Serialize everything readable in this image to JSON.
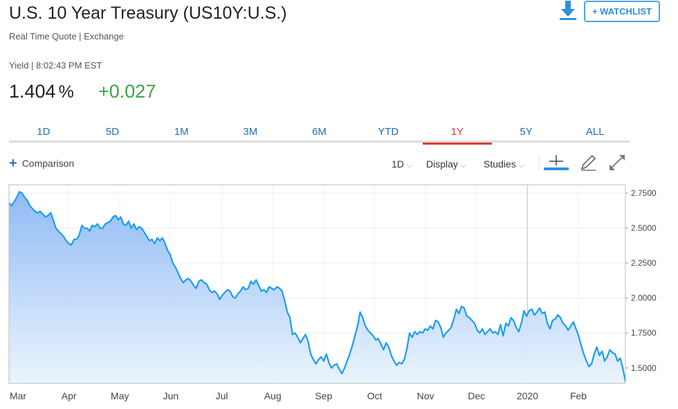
{
  "header": {
    "title": "U.S. 10 Year Treasury (US10Y:U.S.)",
    "subtitle": "Real Time Quote | Exchange",
    "yield_label": "Yield | 8:02:43 PM EST",
    "price": "1.404",
    "price_unit": "%",
    "change": "+0.027",
    "watchlist_label": "+ WATCHLIST",
    "download_icon": "download-icon"
  },
  "colors": {
    "accent_blue": "#2e8fdb",
    "positive_green": "#3aa545",
    "active_tab_red": "#e03a33",
    "line_blue": "#1a9cf0"
  },
  "tabs": [
    {
      "label": "1D",
      "active": false
    },
    {
      "label": "5D",
      "active": false
    },
    {
      "label": "1M",
      "active": false
    },
    {
      "label": "3M",
      "active": false
    },
    {
      "label": "6M",
      "active": false
    },
    {
      "label": "YTD",
      "active": false
    },
    {
      "label": "1Y",
      "active": true
    },
    {
      "label": "5Y",
      "active": false
    },
    {
      "label": "ALL",
      "active": false
    }
  ],
  "toolbar": {
    "comparison_label": "Comparison",
    "interval_label": "1D",
    "display_label": "Display",
    "studies_label": "Studies",
    "icons": [
      "crosshair-icon",
      "pencil-icon",
      "expand-icon"
    ]
  },
  "chart_data": {
    "type": "area",
    "y_ticks": [
      1.5,
      1.75,
      2.0,
      2.25,
      2.5,
      2.75
    ],
    "y_tick_labels": [
      "1.5000",
      "1.7500",
      "2.0000",
      "2.2500",
      "2.5000",
      "2.7500"
    ],
    "ylim": [
      1.39,
      2.81
    ],
    "x_tick_labels": [
      "Mar",
      "Apr",
      "May",
      "Jun",
      "Jul",
      "Aug",
      "Sep",
      "Oct",
      "Nov",
      "Dec",
      "2020",
      "Feb"
    ],
    "grid": true,
    "series": [
      {
        "values": [
          2.68,
          2.66,
          2.69,
          2.72,
          2.76,
          2.75,
          2.72,
          2.7,
          2.66,
          2.64,
          2.62,
          2.61,
          2.62,
          2.6,
          2.58,
          2.59,
          2.61,
          2.56,
          2.5,
          2.48,
          2.46,
          2.44,
          2.41,
          2.39,
          2.38,
          2.42,
          2.42,
          2.45,
          2.52,
          2.5,
          2.5,
          2.48,
          2.52,
          2.51,
          2.53,
          2.5,
          2.5,
          2.53,
          2.54,
          2.55,
          2.58,
          2.59,
          2.56,
          2.58,
          2.53,
          2.52,
          2.55,
          2.5,
          2.53,
          2.49,
          2.51,
          2.5,
          2.47,
          2.44,
          2.41,
          2.42,
          2.39,
          2.43,
          2.41,
          2.43,
          2.39,
          2.34,
          2.31,
          2.25,
          2.22,
          2.18,
          2.14,
          2.11,
          2.13,
          2.14,
          2.12,
          2.09,
          2.07,
          2.12,
          2.13,
          2.11,
          2.1,
          2.06,
          2.04,
          2.05,
          2.03,
          1.99,
          2.02,
          2.04,
          2.06,
          2.05,
          2.01,
          2.0,
          2.03,
          2.05,
          2.08,
          2.06,
          2.07,
          2.12,
          2.1,
          2.13,
          2.09,
          2.05,
          2.06,
          2.04,
          2.08,
          2.07,
          2.06,
          2.08,
          2.07,
          2.05,
          1.98,
          1.9,
          1.86,
          1.74,
          1.75,
          1.72,
          1.68,
          1.71,
          1.74,
          1.69,
          1.6,
          1.56,
          1.53,
          1.56,
          1.58,
          1.55,
          1.6,
          1.54,
          1.5,
          1.52,
          1.53,
          1.49,
          1.46,
          1.5,
          1.55,
          1.6,
          1.66,
          1.73,
          1.8,
          1.9,
          1.86,
          1.8,
          1.77,
          1.75,
          1.73,
          1.7,
          1.71,
          1.67,
          1.63,
          1.68,
          1.65,
          1.59,
          1.55,
          1.52,
          1.54,
          1.53,
          1.56,
          1.64,
          1.75,
          1.72,
          1.76,
          1.74,
          1.76,
          1.75,
          1.78,
          1.77,
          1.8,
          1.78,
          1.84,
          1.83,
          1.79,
          1.72,
          1.75,
          1.77,
          1.79,
          1.85,
          1.92,
          1.89,
          1.94,
          1.93,
          1.87,
          1.86,
          1.84,
          1.82,
          1.77,
          1.75,
          1.78,
          1.74,
          1.76,
          1.78,
          1.75,
          1.76,
          1.74,
          1.81,
          1.73,
          1.82,
          1.8,
          1.86,
          1.84,
          1.79,
          1.76,
          1.82,
          1.91,
          1.87,
          1.91,
          1.92,
          1.88,
          1.9,
          1.93,
          1.89,
          1.9,
          1.82,
          1.78,
          1.84,
          1.85,
          1.88,
          1.86,
          1.82,
          1.8,
          1.77,
          1.8,
          1.83,
          1.78,
          1.73,
          1.66,
          1.6,
          1.55,
          1.51,
          1.53,
          1.6,
          1.65,
          1.59,
          1.62,
          1.55,
          1.58,
          1.63,
          1.61,
          1.6,
          1.55,
          1.57,
          1.5,
          1.404
        ]
      }
    ]
  }
}
